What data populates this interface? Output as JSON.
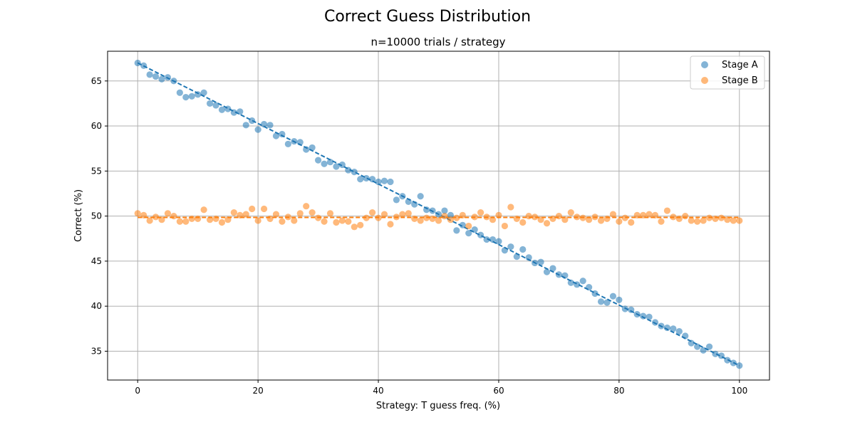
{
  "figure": {
    "suptitle": "Correct Guess Distribution"
  },
  "chart_data": {
    "type": "scatter",
    "title": "n=10000 trials / strategy",
    "xlabel": "Strategy: T guess freq. (%)",
    "ylabel": "Correct (%)",
    "xlim": [
      -5,
      105
    ],
    "ylim": [
      31.8,
      68.3
    ],
    "xticks": [
      0,
      20,
      40,
      60,
      80,
      100
    ],
    "yticks": [
      35,
      40,
      45,
      50,
      55,
      60,
      65
    ],
    "grid": true,
    "legend_position": "top-right",
    "x": [
      0,
      1,
      2,
      3,
      4,
      5,
      6,
      7,
      8,
      9,
      10,
      11,
      12,
      13,
      14,
      15,
      16,
      17,
      18,
      19,
      20,
      21,
      22,
      23,
      24,
      25,
      26,
      27,
      28,
      29,
      30,
      31,
      32,
      33,
      34,
      35,
      36,
      37,
      38,
      39,
      40,
      41,
      42,
      43,
      44,
      45,
      46,
      47,
      48,
      49,
      50,
      51,
      52,
      53,
      54,
      55,
      56,
      57,
      58,
      59,
      60,
      61,
      62,
      63,
      64,
      65,
      66,
      67,
      68,
      69,
      70,
      71,
      72,
      73,
      74,
      75,
      76,
      77,
      78,
      79,
      80,
      81,
      82,
      83,
      84,
      85,
      86,
      87,
      88,
      89,
      90,
      91,
      92,
      93,
      94,
      95,
      96,
      97,
      98,
      99,
      100
    ],
    "series": [
      {
        "name": "Stage A",
        "color": "#1f77b4",
        "values": [
          67.0,
          66.7,
          65.7,
          65.5,
          65.2,
          65.4,
          65.0,
          63.7,
          63.2,
          63.3,
          63.5,
          63.7,
          62.5,
          62.3,
          61.8,
          61.9,
          61.5,
          61.6,
          60.1,
          60.6,
          59.6,
          60.2,
          60.1,
          58.9,
          59.1,
          58.0,
          58.3,
          58.2,
          57.4,
          57.6,
          56.2,
          55.8,
          56.0,
          55.5,
          55.7,
          55.1,
          54.9,
          54.1,
          54.2,
          54.1,
          53.8,
          53.9,
          53.8,
          51.8,
          52.2,
          51.6,
          51.3,
          52.2,
          50.7,
          50.6,
          50.2,
          50.6,
          50.1,
          48.4,
          49.0,
          48.1,
          48.5,
          47.9,
          47.4,
          47.4,
          47.2,
          46.2,
          46.6,
          45.5,
          46.3,
          45.4,
          44.8,
          44.9,
          43.8,
          44.2,
          43.5,
          43.4,
          42.6,
          42.4,
          42.8,
          42.1,
          41.4,
          40.5,
          40.4,
          41.1,
          40.7,
          39.7,
          39.6,
          39.1,
          38.9,
          38.8,
          38.2,
          37.8,
          37.6,
          37.5,
          37.2,
          36.7,
          35.9,
          35.5,
          35.1,
          35.5,
          34.7,
          34.5,
          34.0,
          33.7,
          33.4
        ],
        "trend": [
          67.0,
          33.4
        ]
      },
      {
        "name": "Stage B",
        "color": "#ff7f0e",
        "values": [
          50.3,
          50.1,
          49.5,
          49.9,
          49.6,
          50.3,
          50.0,
          49.4,
          49.4,
          49.7,
          49.7,
          50.7,
          49.6,
          49.7,
          49.3,
          49.6,
          50.4,
          50.1,
          50.2,
          50.8,
          49.5,
          50.8,
          49.7,
          50.2,
          49.4,
          49.9,
          49.5,
          50.3,
          51.1,
          50.4,
          49.8,
          49.4,
          50.3,
          49.3,
          49.5,
          49.4,
          48.8,
          49.0,
          49.8,
          50.4,
          49.8,
          50.2,
          49.1,
          49.9,
          50.2,
          50.3,
          49.7,
          49.5,
          49.8,
          49.7,
          49.5,
          50.0,
          49.6,
          49.8,
          50.1,
          48.9,
          49.9,
          50.4,
          49.9,
          49.6,
          50.1,
          48.9,
          51.0,
          49.7,
          49.3,
          50.0,
          49.9,
          49.6,
          49.2,
          49.7,
          50.0,
          49.6,
          50.4,
          49.9,
          49.8,
          49.6,
          49.9,
          49.5,
          49.7,
          50.2,
          49.4,
          49.8,
          49.3,
          50.1,
          50.1,
          50.2,
          50.1,
          49.4,
          50.6,
          49.9,
          49.7,
          50.0,
          49.5,
          49.4,
          49.5,
          49.8,
          49.7,
          49.8,
          49.6,
          49.5,
          49.5
        ],
        "trend": [
          49.85,
          49.85
        ]
      }
    ]
  }
}
